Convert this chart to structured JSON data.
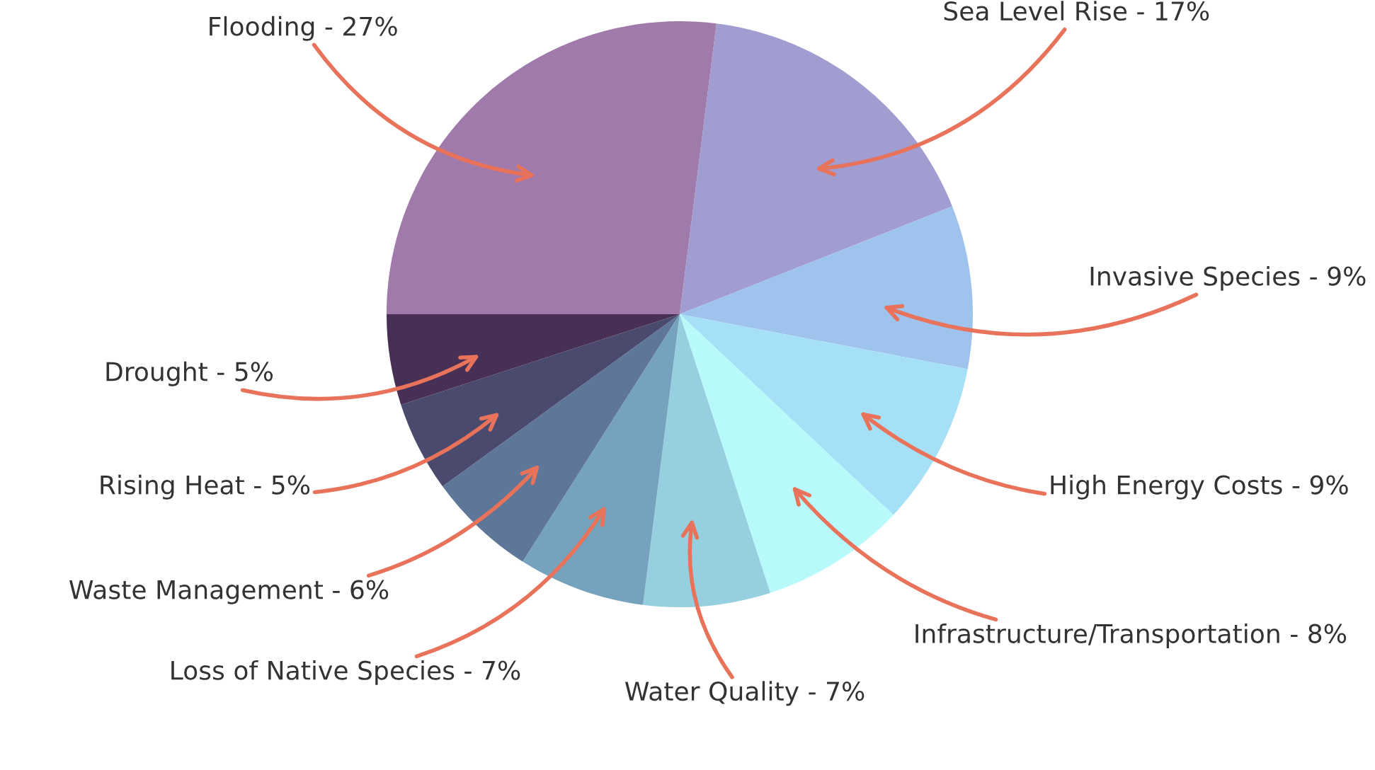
{
  "chart_data": {
    "type": "pie",
    "categories": [
      "Sea Level Rise - 17%",
      "Invasive Species - 9%",
      "High Energy Costs - 9%",
      "Infrastructure/Transportation - 8%",
      "Water Quality - 7%",
      "Loss of Native Species - 7%",
      "Waste Management - 6%",
      "Rising Heat - 5%",
      "Drought - 5%",
      "Flooding - 27%"
    ],
    "values": [
      17,
      9,
      9,
      8,
      7,
      7,
      6,
      5,
      5,
      27
    ],
    "colors": [
      "#a19dd0",
      "#9ec3ec",
      "#a6e0f7",
      "#b8fafa",
      "#96d0e0",
      "#75a3bd",
      "#5e7697",
      "#4a4a6e",
      "#472f55",
      "#a07aaa"
    ]
  }
}
